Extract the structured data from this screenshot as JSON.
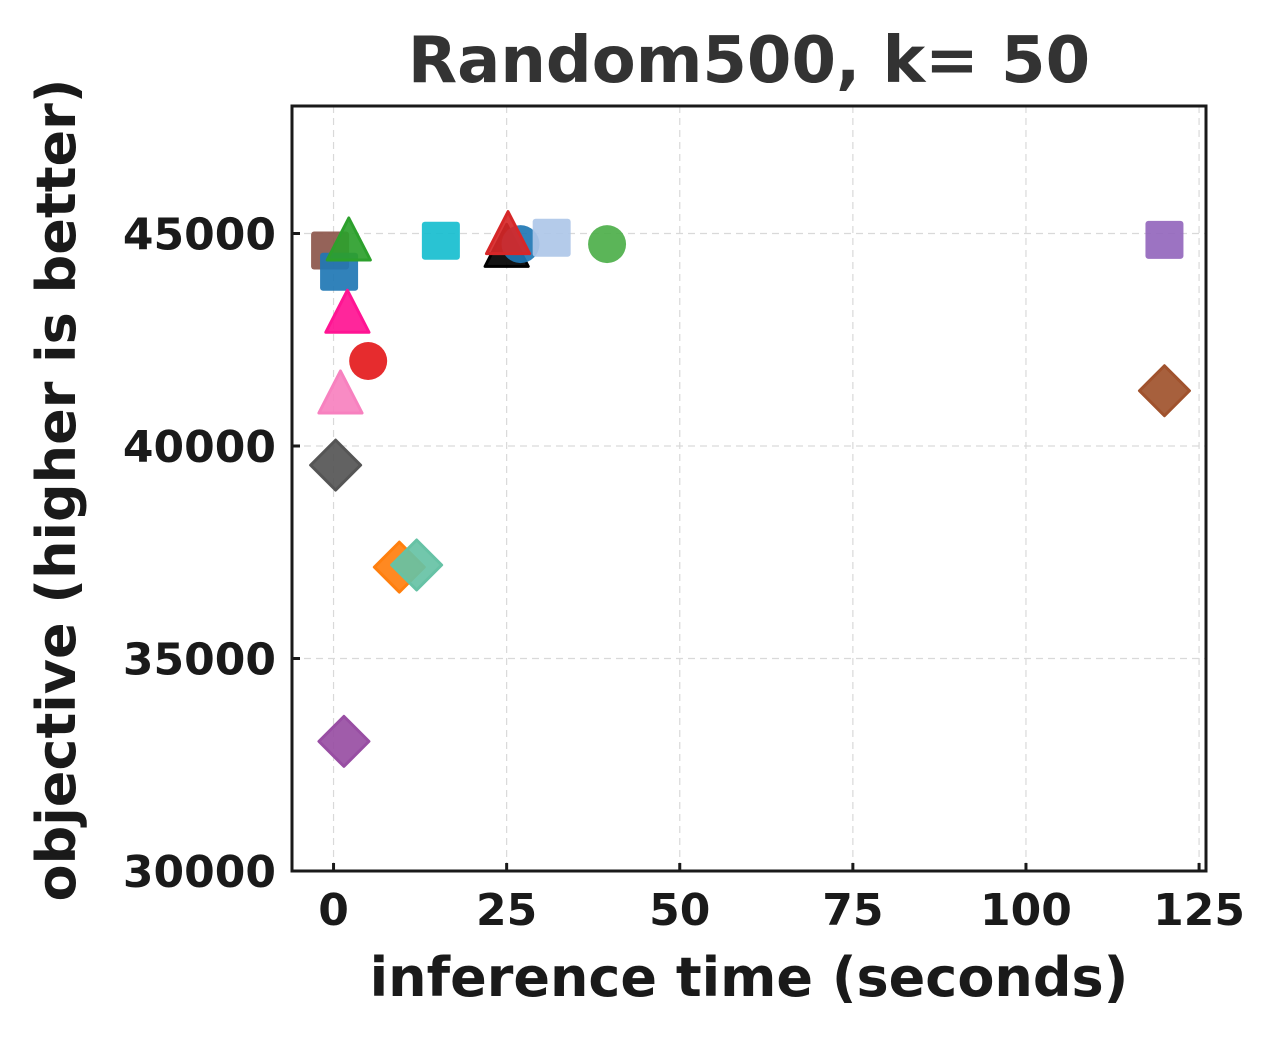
{
  "chart_data": {
    "type": "scatter",
    "title": "Random500, k= 50",
    "xlabel": "inference time (seconds)",
    "ylabel": "objective (higher is better)",
    "xlim": [
      -6,
      126
    ],
    "ylim": [
      30000,
      48000
    ],
    "xticks": [
      0,
      25,
      50,
      75,
      100,
      125
    ],
    "yticks": [
      30000,
      35000,
      40000,
      45000
    ],
    "grid": true,
    "points": [
      {
        "x": -0.5,
        "y": 44600,
        "marker": "square",
        "color": "#8c564b"
      },
      {
        "x": 0.8,
        "y": 44100,
        "marker": "square",
        "color": "#1f77b4"
      },
      {
        "x": 2.2,
        "y": 44800,
        "marker": "triangle",
        "color": "#2ca02c"
      },
      {
        "x": 2.0,
        "y": 43100,
        "marker": "triangle",
        "color": "#ff1493"
      },
      {
        "x": 5.0,
        "y": 42000,
        "marker": "circle",
        "color": "#e41a1c"
      },
      {
        "x": 1.0,
        "y": 41200,
        "marker": "triangle",
        "color": "#f781bf"
      },
      {
        "x": 0.3,
        "y": 39550,
        "marker": "diamond",
        "color": "#555555"
      },
      {
        "x": 9.5,
        "y": 37150,
        "marker": "diamond",
        "color": "#ff7f0e"
      },
      {
        "x": 12.0,
        "y": 37200,
        "marker": "diamond",
        "color": "#66c2a5"
      },
      {
        "x": 1.5,
        "y": 33050,
        "marker": "diamond",
        "color": "#984ea3"
      },
      {
        "x": 15.5,
        "y": 44830,
        "marker": "square",
        "color": "#17becf"
      },
      {
        "x": 25.0,
        "y": 44650,
        "marker": "triangle",
        "color": "#000000"
      },
      {
        "x": 27.0,
        "y": 44750,
        "marker": "circle",
        "color": "#1f77b4"
      },
      {
        "x": 25.2,
        "y": 44950,
        "marker": "triangle",
        "color": "#d62728"
      },
      {
        "x": 31.5,
        "y": 44900,
        "marker": "square",
        "color": "#aec7e8"
      },
      {
        "x": 39.5,
        "y": 44750,
        "marker": "circle",
        "color": "#4daf4a"
      },
      {
        "x": 120.0,
        "y": 44850,
        "marker": "square",
        "color": "#9467bd"
      },
      {
        "x": 120.0,
        "y": 41300,
        "marker": "diamond",
        "color": "#a0522d"
      }
    ]
  }
}
